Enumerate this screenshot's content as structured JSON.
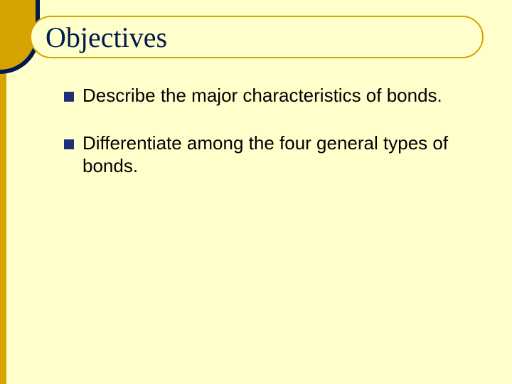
{
  "colors": {
    "slide_bg": "#ffffcc",
    "corner_navy": "#001a4d",
    "corner_gold": "#d6a400",
    "left_stripe": "#d6a400",
    "title_border": "#d6a400",
    "title_bg": "#ffffcc",
    "title_text": "#001a4d",
    "bullet_fill": "#1f2f7a",
    "body_text": "#000000"
  },
  "layout": {
    "corner_w": 56,
    "corner_h": 104,
    "gold_corner_w": 50,
    "gold_corner_h": 98,
    "left_stripe_w": 9,
    "title_fontsize": 40,
    "body_fontsize": 26,
    "bullet_size": 14
  },
  "title": "Objectives",
  "bullets": [
    "Describe the major characteristics of bonds.",
    "Differentiate among the four general types of bonds."
  ]
}
